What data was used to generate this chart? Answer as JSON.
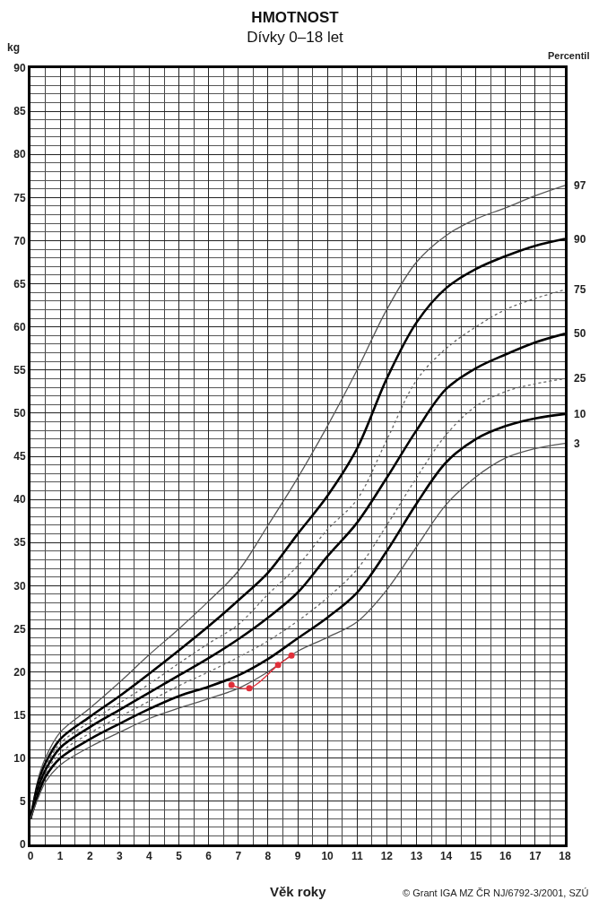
{
  "chart_data": {
    "type": "line",
    "title": "HMOTNOST",
    "subtitle": "Dívky 0–18 let",
    "xlabel": "Věk roky",
    "ylabel": "kg",
    "annotations": [
      "Percentil",
      "© Grant IGA MZ ČR NJ/6792-3/2001, SZÚ"
    ],
    "x": [
      0,
      0.25,
      0.5,
      1,
      2,
      3,
      4,
      5,
      6,
      7,
      8,
      9,
      10,
      11,
      12,
      13,
      14,
      15,
      16,
      17,
      18
    ],
    "series": [
      {
        "name": "97",
        "color": "#555555",
        "line_style": "solid",
        "values": [
          3.0,
          7.5,
          10,
          13.0,
          15.8,
          18.8,
          22.0,
          25.0,
          28.2,
          31.7,
          37,
          42.5,
          48.5,
          55,
          62,
          67.5,
          70.6,
          72.5,
          73.8,
          75.2,
          76.4
        ]
      },
      {
        "name": "90",
        "color": "#000000",
        "line_style": "solid",
        "values": [
          3.0,
          7,
          9.4,
          12.2,
          14.8,
          17.2,
          19.8,
          22.5,
          25.3,
          28.3,
          31.5,
          36,
          40.4,
          45.9,
          54,
          60.5,
          64.5,
          66.7,
          68.2,
          69.4,
          70.2
        ]
      },
      {
        "name": "75",
        "color": "#666666",
        "line_style": "dotted",
        "values": [
          3.0,
          6.7,
          9.0,
          11.7,
          14.2,
          16.4,
          18.6,
          21.0,
          23.3,
          25.5,
          29,
          32.3,
          36.5,
          40,
          46.9,
          53.8,
          57.5,
          60,
          62,
          63.3,
          64.3
        ]
      },
      {
        "name": "50",
        "color": "#000000",
        "line_style": "solid",
        "values": [
          3.0,
          6.4,
          8.6,
          11.2,
          13.6,
          15.6,
          17.6,
          19.6,
          21.6,
          23.8,
          26.3,
          29.2,
          33.4,
          37.3,
          42.5,
          48,
          52.8,
          55.2,
          56.8,
          58.2,
          59.2
        ]
      },
      {
        "name": "25",
        "color": "#666666",
        "line_style": "dotted",
        "values": [
          3.0,
          6.0,
          8.2,
          10.6,
          12.9,
          14.8,
          16.6,
          18.4,
          20.0,
          21.7,
          23.6,
          25.9,
          28.6,
          31.9,
          37,
          42.5,
          47.5,
          50.8,
          52.5,
          53.4,
          54
        ]
      },
      {
        "name": "10",
        "color": "#000000",
        "line_style": "solid",
        "values": [
          3.0,
          5.7,
          7.8,
          10.0,
          12.2,
          14.0,
          15.7,
          17.2,
          18.3,
          19.6,
          21.5,
          23.9,
          26.3,
          29.2,
          34,
          39.5,
          44.3,
          47,
          48.5,
          49.4,
          49.9
        ]
      },
      {
        "name": "3",
        "color": "#555555",
        "line_style": "solid",
        "values": [
          3.0,
          5.3,
          7.2,
          9.2,
          11.3,
          13.0,
          14.6,
          15.8,
          16.9,
          18.1,
          20.0,
          22.4,
          24.0,
          25.8,
          29.5,
          34.5,
          39.4,
          42.6,
          44.8,
          45.9,
          46.5
        ]
      },
      {
        "color": "#e0303a",
        "line_style": "solid",
        "marker": "circle",
        "x": [
          6.77,
          7.37,
          8.34,
          8.79
        ],
        "values": [
          18.5,
          18.1,
          20.8,
          21.9
        ]
      }
    ],
    "xlim": [
      0,
      18
    ],
    "xticks": [
      0,
      1,
      2,
      3,
      4,
      5,
      6,
      7,
      8,
      9,
      10,
      11,
      12,
      13,
      14,
      15,
      16,
      17,
      18
    ],
    "ylim": [
      0,
      90
    ],
    "yticks": [
      0,
      5,
      10,
      15,
      20,
      25,
      30,
      35,
      40,
      45,
      50,
      55,
      60,
      65,
      70,
      75,
      80,
      85,
      90
    ],
    "grid": true,
    "legend": false
  }
}
